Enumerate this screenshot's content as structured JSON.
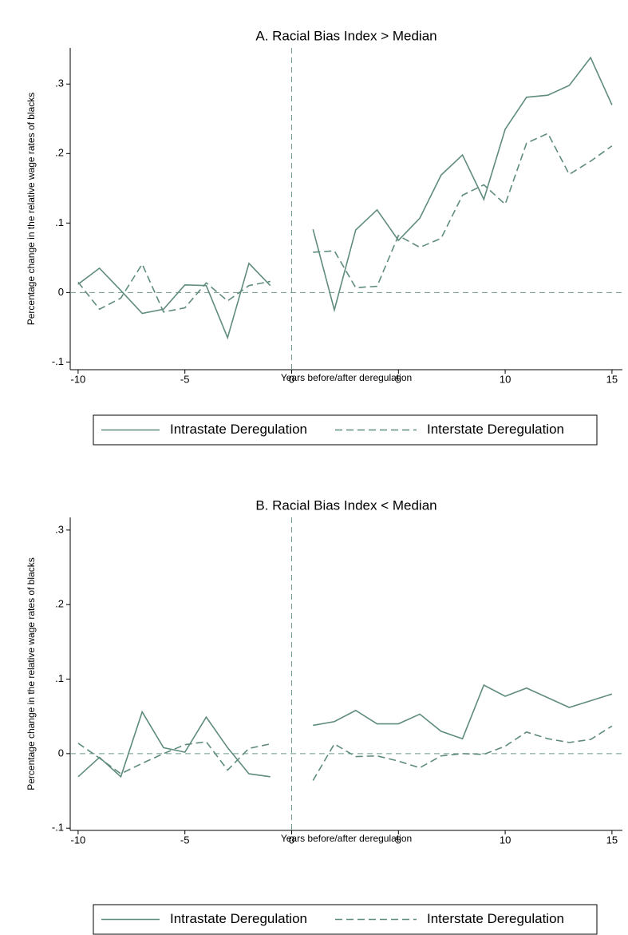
{
  "chart_data": [
    {
      "type": "line",
      "title": "A. Racial Bias Index > Median",
      "x_label": "Years before/after deregulation",
      "y_label": "Percentage change in the relative wage rates of blacks",
      "x": [
        -10,
        -9,
        -8,
        -7,
        -6,
        -5,
        -4,
        -3,
        -2,
        -1,
        0,
        1,
        2,
        3,
        4,
        5,
        6,
        7,
        8,
        9,
        10,
        11,
        12,
        13,
        14,
        15
      ],
      "series": [
        {
          "name": "Intrastate Deregulation",
          "color": "#5f8c7c",
          "dash": "solid",
          "values": [
            0.012,
            0.035,
            0.003,
            -0.03,
            -0.024,
            0.011,
            0.01,
            -0.065,
            0.042,
            0.01,
            null,
            0.091,
            -0.025,
            0.09,
            0.119,
            0.075,
            0.107,
            0.169,
            0.198,
            0.134,
            0.235,
            0.281,
            0.284,
            0.298,
            0.338,
            0.27
          ]
        },
        {
          "name": "Interstate Deregulation",
          "color": "#5f8c7c",
          "dash": "dashed",
          "values": [
            0.015,
            -0.024,
            -0.008,
            0.041,
            -0.028,
            -0.022,
            0.014,
            -0.012,
            0.01,
            0.016,
            null,
            0.058,
            0.06,
            0.007,
            0.009,
            0.082,
            0.065,
            0.078,
            0.14,
            0.155,
            0.127,
            0.215,
            0.229,
            0.17,
            0.189,
            0.211
          ]
        }
      ],
      "xlim": [
        -10.37,
        15.49
      ],
      "ylim": [
        -0.111,
        0.352
      ],
      "xticks": [
        -10,
        -5,
        0,
        5,
        10,
        15
      ],
      "yticks": [
        {
          "value": -0.1,
          "label": "-.1"
        },
        0,
        {
          "value": 0.1,
          "label": ".1"
        },
        {
          "value": 0.2,
          "label": ".2"
        },
        {
          "value": 0.3,
          "label": ".3"
        }
      ],
      "reference_lines": {
        "x": 0,
        "y": 0
      }
    },
    {
      "type": "line",
      "title": "B. Racial Bias Index < Median",
      "x_label": "Years before/after deregulation",
      "y_label": "Percentage change in the relative wage rates of blacks",
      "x": [
        -10,
        -9,
        -8,
        -7,
        -6,
        -5,
        -4,
        -3,
        -2,
        -1,
        0,
        1,
        2,
        3,
        4,
        5,
        6,
        7,
        8,
        9,
        10,
        11,
        12,
        13,
        14,
        15
      ],
      "series": [
        {
          "name": "Intrastate Deregulation",
          "color": "#5f8c7c",
          "dash": "solid",
          "values": [
            -0.031,
            -0.005,
            -0.031,
            0.056,
            0.008,
            0.002,
            0.049,
            0.008,
            -0.027,
            -0.031,
            null,
            0.038,
            0.043,
            0.058,
            0.04,
            0.04,
            0.053,
            0.03,
            0.02,
            0.092,
            0.077,
            0.088,
            0.075,
            0.062,
            0.071,
            0.08
          ]
        },
        {
          "name": "Interstate Deregulation",
          "color": "#5f8c7c",
          "dash": "dashed",
          "values": [
            0.014,
            -0.006,
            -0.027,
            -0.013,
            0.0,
            0.012,
            0.016,
            -0.022,
            0.007,
            0.013,
            null,
            -0.036,
            0.013,
            -0.004,
            -0.003,
            -0.01,
            -0.019,
            -0.003,
            0.0,
            -0.001,
            0.01,
            0.029,
            0.02,
            0.015,
            0.019,
            0.037
          ]
        }
      ],
      "xlim": [
        -10.37,
        15.49
      ],
      "ylim": [
        -0.103,
        0.317
      ],
      "xticks": [
        -10,
        -5,
        0,
        5,
        10,
        15
      ],
      "yticks": [
        {
          "value": -0.1,
          "label": "-.1"
        },
        0,
        {
          "value": 0.1,
          "label": ".1"
        },
        {
          "value": 0.2,
          "label": ".2"
        },
        {
          "value": 0.3,
          "label": ".3"
        }
      ],
      "reference_lines": {
        "x": 0,
        "y": 0
      }
    }
  ]
}
